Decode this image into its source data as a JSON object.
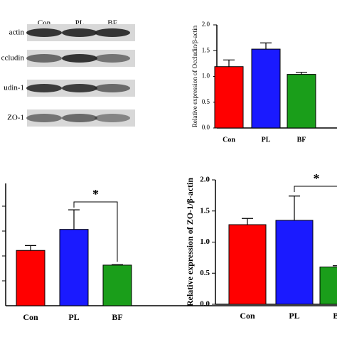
{
  "blot": {
    "lanes": [
      "Con",
      "PL",
      "BF"
    ],
    "rows": [
      "actin",
      "ccludin",
      "udin-1",
      "ZO-1"
    ]
  },
  "chart_data": [
    {
      "type": "bar",
      "y_label": "Relative expression of Occludin/β-actin",
      "categories": [
        "Con",
        "PL",
        "BF"
      ],
      "values": [
        1.19,
        1.53,
        1.04
      ],
      "errors": [
        0.13,
        0.12,
        0.04
      ],
      "colors": [
        "#ff0000",
        "#1a1aff",
        "#1a9e1a"
      ],
      "ylim": [
        0,
        2
      ],
      "yticks": [
        {
          "value": 0,
          "label": "0.0"
        },
        0.5,
        {
          "value": 1,
          "label": "1.0"
        },
        1.5,
        {
          "value": 2,
          "label": "2.0"
        }
      ]
    },
    {
      "type": "bar",
      "categories": [
        "Con",
        "PL",
        "BF"
      ],
      "values": [
        1.13,
        1.56,
        0.83
      ],
      "errors": [
        0.1,
        0.4,
        0.01
      ],
      "colors": [
        "#ff0000",
        "#1a1aff",
        "#1a9e1a"
      ],
      "ylim": [
        0,
        2.5
      ],
      "annotation": "*"
    },
    {
      "type": "bar",
      "y_label": "Relative expression of ZO-1/β-actin",
      "categories": [
        "Con",
        "PL",
        "BF"
      ],
      "values": [
        1.28,
        1.35,
        0.6
      ],
      "errors": [
        0.1,
        0.39,
        0.02
      ],
      "colors": [
        "#ff0000",
        "#1a1aff",
        "#1a9e1a"
      ],
      "ylim": [
        0,
        2
      ],
      "yticks": [
        {
          "value": 0,
          "label": "0.0"
        },
        0.5,
        {
          "value": 1,
          "label": "1.0"
        },
        1.5,
        {
          "value": 2,
          "label": "2.0"
        }
      ],
      "annotation": "*"
    }
  ]
}
